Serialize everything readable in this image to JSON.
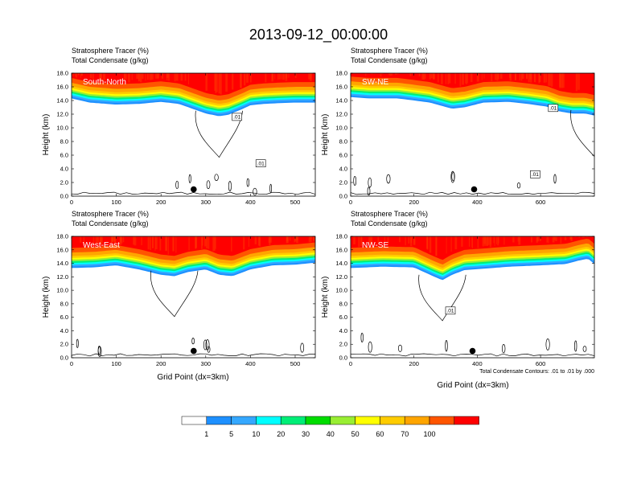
{
  "figure": {
    "title": "2013-09-12_00:00:00",
    "field_label": "Stratosphere Tracer",
    "field_units": "(%)",
    "contour_label": "Total Condensate",
    "contour_units": "(g/kg)",
    "ylabel": "Height (km)",
    "xlabel": "Grid Point (dx=3km)",
    "contour_note": "Total Condensate Contours: .01 to .01 by .000",
    "contour_value_label": ".01"
  },
  "colorbar": {
    "labels": [
      "1",
      "5",
      "10",
      "20",
      "30",
      "40",
      "50",
      "60",
      "70",
      "100"
    ],
    "colors": [
      "#ffffff",
      "#1e90ff",
      "#35a8ff",
      "#00ffff",
      "#00ee77",
      "#00dd00",
      "#99ee33",
      "#ffff00",
      "#ffcc00",
      "#ffa500",
      "#ff5500",
      "#ff0000"
    ]
  },
  "chart_data": [
    {
      "type": "heatmap",
      "name": "South-North",
      "xlim": [
        0,
        545
      ],
      "ylim": [
        0,
        18
      ],
      "xticks": [
        "0",
        "100",
        "200",
        "300",
        "400",
        "500"
      ],
      "xtick_values": [
        0,
        100,
        200,
        300,
        400,
        500
      ],
      "yticks": [
        "0.0",
        "2.0",
        "4.0",
        "6.0",
        "8.0",
        "10.0",
        "12.0",
        "14.0",
        "16.0",
        "18.0"
      ],
      "ytick_values": [
        0,
        2,
        4,
        6,
        8,
        10,
        12,
        14,
        16,
        18
      ],
      "tropopause_x": [
        0,
        40,
        100,
        150,
        200,
        240,
        270,
        300,
        330,
        350,
        380,
        400,
        430,
        460,
        500,
        545
      ],
      "tropopause_km": [
        14.8,
        14.2,
        13.9,
        14.0,
        14.3,
        14.0,
        13.3,
        12.6,
        12.2,
        12.4,
        13.2,
        13.8,
        14.0,
        14.1,
        14.2,
        14.2
      ],
      "contour_labels": [
        {
          "x": 370,
          "km": 11.6
        },
        {
          "x": 423,
          "km": 4.8
        }
      ],
      "marker": {
        "x": 273,
        "km": 1.0
      }
    },
    {
      "type": "heatmap",
      "name": "SW-NE",
      "xlim": [
        0,
        770
      ],
      "ylim": [
        0,
        18
      ],
      "xticks": [
        "0",
        "200",
        "400",
        "600"
      ],
      "xtick_values": [
        0,
        200,
        400,
        600
      ],
      "yticks": [
        "0.0",
        "2.0",
        "4.0",
        "6.0",
        "8.0",
        "10.0",
        "12.0",
        "14.0",
        "16.0",
        "18.0"
      ],
      "ytick_values": [
        0,
        2,
        4,
        6,
        8,
        10,
        12,
        14,
        16,
        18
      ],
      "tropopause_x": [
        0,
        60,
        150,
        250,
        320,
        360,
        420,
        500,
        560,
        620,
        660,
        700,
        740,
        770
      ],
      "tropopause_km": [
        15.0,
        14.8,
        14.8,
        14.2,
        13.3,
        13.5,
        14.2,
        14.3,
        14.0,
        13.6,
        12.9,
        12.6,
        12.6,
        12.3
      ],
      "contour_labels": [
        {
          "x": 640,
          "km": 12.9
        },
        {
          "x": 583,
          "km": 3.2
        }
      ],
      "marker": {
        "x": 390,
        "km": 1.0
      }
    },
    {
      "type": "heatmap",
      "name": "West-East",
      "xlim": [
        0,
        545
      ],
      "ylim": [
        0,
        18
      ],
      "xticks": [
        "0",
        "100",
        "200",
        "300",
        "400",
        "500"
      ],
      "xtick_values": [
        0,
        100,
        200,
        300,
        400,
        500
      ],
      "yticks": [
        "0.0",
        "2.0",
        "4.0",
        "6.0",
        "8.0",
        "10.0",
        "12.0",
        "14.0",
        "16.0",
        "18.0"
      ],
      "ytick_values": [
        0,
        2,
        4,
        6,
        8,
        10,
        12,
        14,
        16,
        18
      ],
      "tropopause_x": [
        0,
        50,
        100,
        150,
        200,
        230,
        260,
        300,
        330,
        360,
        400,
        450,
        500,
        545
      ],
      "tropopause_km": [
        13.8,
        13.9,
        14.2,
        13.6,
        12.8,
        12.6,
        13.2,
        13.6,
        12.8,
        12.6,
        13.6,
        14.2,
        14.3,
        14.6
      ],
      "contour_labels": [],
      "marker": {
        "x": 273,
        "km": 1.0
      }
    },
    {
      "type": "heatmap",
      "name": "NW-SE",
      "xlim": [
        0,
        770
      ],
      "ylim": [
        0,
        18
      ],
      "xticks": [
        "0",
        "200",
        "400",
        "600"
      ],
      "xtick_values": [
        0,
        200,
        400,
        600
      ],
      "yticks": [
        "0.0",
        "2.0",
        "4.0",
        "6.0",
        "8.0",
        "10.0",
        "12.0",
        "14.0",
        "16.0",
        "18.0"
      ],
      "ytick_values": [
        0,
        2,
        4,
        6,
        8,
        10,
        12,
        14,
        16,
        18
      ],
      "tropopause_x": [
        0,
        100,
        200,
        260,
        290,
        320,
        360,
        420,
        500,
        600,
        680,
        720,
        750,
        770
      ],
      "tropopause_km": [
        13.8,
        14.0,
        13.9,
        12.6,
        12.0,
        12.8,
        13.5,
        13.7,
        14.0,
        14.2,
        14.4,
        14.9,
        15.2,
        14.4
      ],
      "contour_labels": [
        {
          "x": 315,
          "km": 7.0
        }
      ],
      "marker": {
        "x": 385,
        "km": 1.0
      }
    }
  ]
}
